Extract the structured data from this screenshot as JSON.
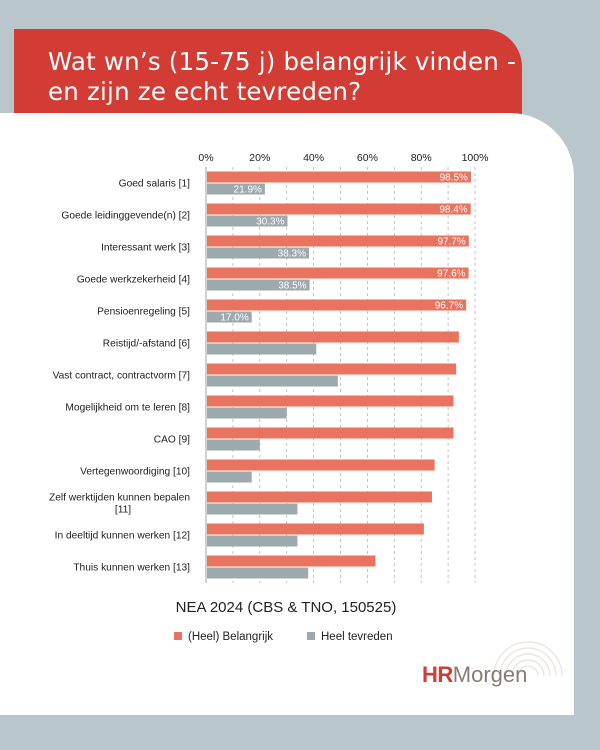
{
  "header": {
    "title": "Wat wn’s (15-75 j) belangrijk vinden - en zijn ze echt tevreden?"
  },
  "brand": {
    "logo_hr": "HR",
    "logo_rest": "Morgen",
    "logo_icon": "concentric-arcs-icon"
  },
  "colors": {
    "background": "#b9c7cc",
    "header": "#d23c35",
    "belangrijk": "#e8735f",
    "tevreden": "#9ea9ad"
  },
  "chart_data": {
    "type": "bar",
    "orientation": "horizontal",
    "caption": "NEA 2024 (CBS & TNO, 150525)",
    "xlim": [
      0,
      100
    ],
    "x_ticks": [
      "0%",
      "20%",
      "40%",
      "60%",
      "80%",
      "100%"
    ],
    "grid": "vertical dashed",
    "legend_position": "bottom",
    "categories": [
      [
        "Goed salaris [1]"
      ],
      [
        "Goede leidinggevende(n) [2]"
      ],
      [
        "Interessant werk [3]"
      ],
      [
        "Goede werkzekerheid [4]"
      ],
      [
        "Pensioenregeling [5]"
      ],
      [
        "Reistijd/-afstand [6]"
      ],
      [
        "Vast contract, contractvorm [7]"
      ],
      [
        "Mogelijkheid om te leren [8]"
      ],
      [
        "CAO [9]"
      ],
      [
        "Vertegenwoordiging [10]"
      ],
      [
        "Zelf werktijden kunnen bepalen",
        "[11]"
      ],
      [
        "In deeltijd kunnen werken [12]"
      ],
      [
        "Thuis kunnen werken [13]"
      ]
    ],
    "series": [
      {
        "name": "(Heel) Belangrijk",
        "color": "#e8735f",
        "values": [
          98.5,
          98.4,
          97.7,
          97.6,
          96.7,
          94,
          93,
          92,
          92,
          85,
          84,
          81,
          63
        ],
        "labels": [
          "98.5%",
          "98.4%",
          "97.7%",
          "97.6%",
          "96.7%",
          "",
          "",
          "",
          "",
          "",
          "",
          "",
          ""
        ]
      },
      {
        "name": "Heel tevreden",
        "color": "#9ea9ad",
        "values": [
          21.9,
          30.3,
          38.3,
          38.5,
          17.0,
          41,
          49,
          30,
          20,
          17,
          34,
          34,
          38
        ],
        "labels": [
          "21.9%",
          "30.3%",
          "38.3%",
          "38.5%",
          "17.0%",
          "",
          "",
          "",
          "",
          "",
          "",
          "",
          ""
        ]
      }
    ]
  }
}
